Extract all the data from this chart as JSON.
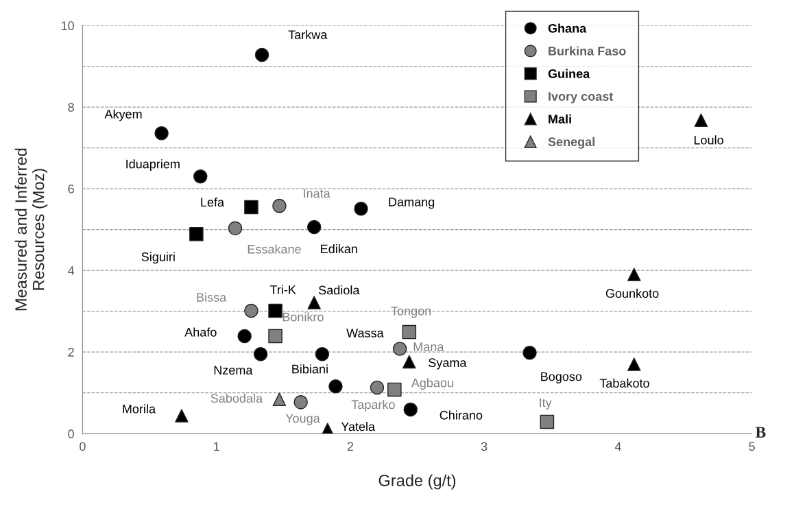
{
  "chart_data": {
    "type": "scatter",
    "xlabel": "Grade (g/t)",
    "ylabel": "Measured and Inferred\nResources (Moz)",
    "xlim": [
      0,
      5
    ],
    "xticks": [
      0,
      1,
      2,
      3,
      4,
      5
    ],
    "ylim": [
      0,
      10
    ],
    "yticks": [
      0,
      {
        "value": 1,
        "label": null
      },
      2,
      {
        "value": 3,
        "label": null
      },
      4,
      {
        "value": 5,
        "label": null
      },
      6,
      {
        "value": 7,
        "label": null
      },
      8,
      {
        "value": 9,
        "label": null
      },
      10
    ],
    "grid": "y",
    "legend": "top right",
    "series": [
      {
        "name": "Ghana",
        "color": "#000000",
        "marker": "circle",
        "x": [
          1.34,
          0.59,
          0.88,
          2.08,
          1.73,
          1.21,
          1.33,
          1.79,
          1.89,
          2.45,
          3.34
        ],
        "values": [
          9.28,
          7.36,
          6.3,
          5.51,
          5.06,
          2.39,
          1.95,
          1.95,
          1.16,
          0.59,
          1.98
        ]
      },
      {
        "name": "Burkina Faso",
        "color": "#808080",
        "marker": "circle",
        "x": [
          1.47,
          1.14,
          1.26,
          2.37,
          2.2,
          1.63
        ],
        "values": [
          5.58,
          5.03,
          3.01,
          2.08,
          1.13,
          0.77
        ]
      },
      {
        "name": "Guinea",
        "color": "#000000",
        "marker": "square",
        "x": [
          1.26,
          0.85,
          1.44
        ],
        "values": [
          5.55,
          4.89,
          3.01
        ]
      },
      {
        "name": "Ivory coast",
        "color": "#808080",
        "marker": "square",
        "x": [
          1.44,
          2.44,
          2.33,
          3.47
        ],
        "values": [
          2.39,
          2.49,
          1.08,
          0.29
        ]
      },
      {
        "name": "Mali",
        "color": "#000000",
        "marker": "triangle",
        "x": [
          4.62,
          4.12,
          1.73,
          2.44,
          4.12,
          0.74,
          1.83
        ],
        "values": [
          7.68,
          3.9,
          3.21,
          1.76,
          1.7,
          0.44,
          0.1
        ]
      },
      {
        "name": "Senegal",
        "color": "#808080",
        "marker": "triangle",
        "x": [
          1.47
        ],
        "values": [
          0.84
        ]
      }
    ],
    "annotations": [
      {
        "text": "Tarkwa",
        "x": 1.34,
        "y": 9.28
      },
      {
        "text": "Akyem",
        "x": 0.59,
        "y": 7.36
      },
      {
        "text": "Iduapriem",
        "x": 0.88,
        "y": 6.3
      },
      {
        "text": "Damang",
        "x": 2.08,
        "y": 5.51
      },
      {
        "text": "Edikan",
        "x": 1.73,
        "y": 5.06
      },
      {
        "text": "Ahafo",
        "x": 1.21,
        "y": 2.39
      },
      {
        "text": "Nzema",
        "x": 1.33,
        "y": 1.95
      },
      {
        "text": "Wassa",
        "x": 1.79,
        "y": 1.95
      },
      {
        "text": "Bibiani",
        "x": 1.89,
        "y": 1.16
      },
      {
        "text": "Chirano",
        "x": 2.45,
        "y": 0.59
      },
      {
        "text": "Bogoso",
        "x": 3.34,
        "y": 1.98
      },
      {
        "text": "Inata",
        "x": 1.47,
        "y": 5.58
      },
      {
        "text": "Essakane",
        "x": 1.14,
        "y": 5.03
      },
      {
        "text": "Bissa",
        "x": 1.26,
        "y": 3.01
      },
      {
        "text": "Mana",
        "x": 2.37,
        "y": 2.08
      },
      {
        "text": "Taparko",
        "x": 2.2,
        "y": 1.13
      },
      {
        "text": "Youga",
        "x": 1.63,
        "y": 0.77
      },
      {
        "text": "Lefa",
        "x": 1.26,
        "y": 5.55
      },
      {
        "text": "Siguiri",
        "x": 0.85,
        "y": 4.89
      },
      {
        "text": "Tri-K",
        "x": 1.44,
        "y": 3.01
      },
      {
        "text": "Bonikro",
        "x": 1.44,
        "y": 2.39
      },
      {
        "text": "Tongon",
        "x": 2.44,
        "y": 2.49
      },
      {
        "text": "Agbaou",
        "x": 2.33,
        "y": 1.08
      },
      {
        "text": "Ity",
        "x": 3.47,
        "y": 0.29
      },
      {
        "text": "Loulo",
        "x": 4.62,
        "y": 7.68
      },
      {
        "text": "Gounkoto",
        "x": 4.12,
        "y": 3.9
      },
      {
        "text": "Sadiola",
        "x": 1.73,
        "y": 3.21
      },
      {
        "text": "Syama",
        "x": 2.44,
        "y": 1.76
      },
      {
        "text": "Tabakoto",
        "x": 4.12,
        "y": 1.7
      },
      {
        "text": "Morila",
        "x": 0.74,
        "y": 0.44
      },
      {
        "text": "Yatela",
        "x": 1.83,
        "y": 0.1
      },
      {
        "text": "Sabodala",
        "x": 1.47,
        "y": 0.84
      },
      "B"
    ]
  }
}
